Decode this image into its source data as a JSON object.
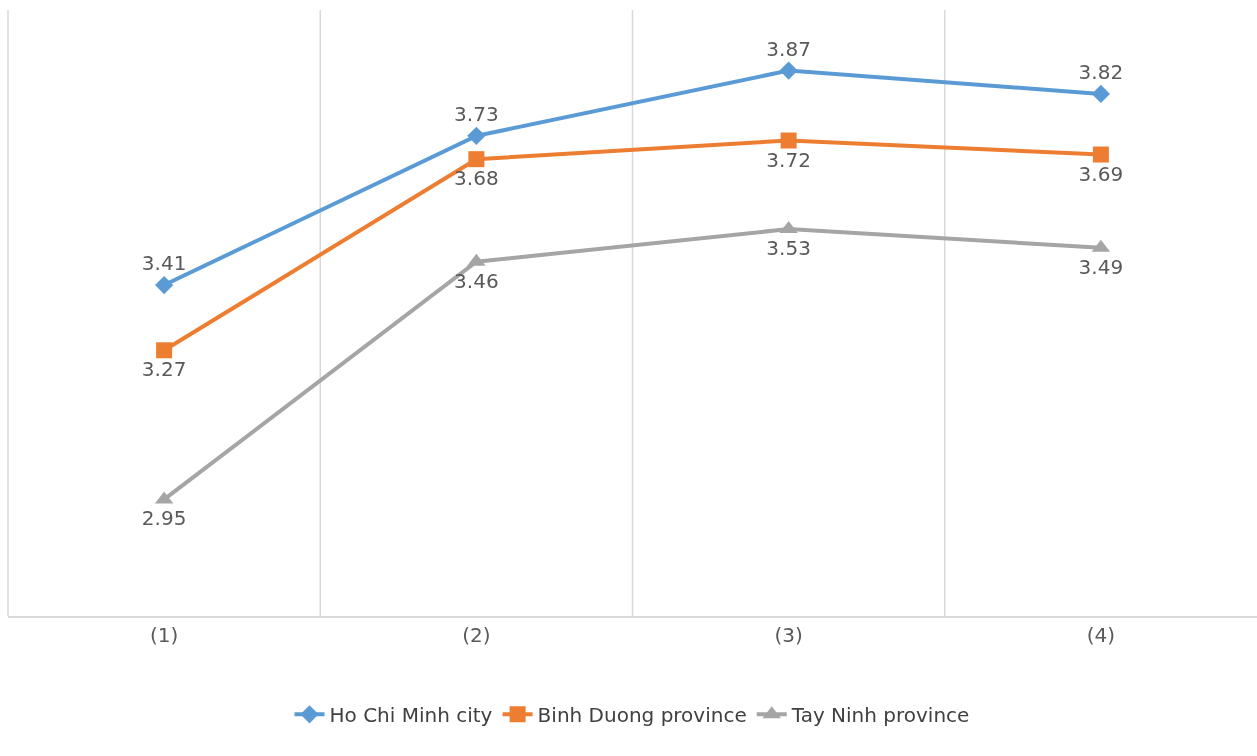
{
  "chart_data": {
    "type": "line",
    "categories": [
      "(1)",
      "(2)",
      "(3)",
      "(4)"
    ],
    "series": [
      {
        "name": "Ho Chi Minh city",
        "color": "#5b9bd5",
        "marker": "diamond",
        "values": [
          3.41,
          3.73,
          3.87,
          3.82
        ]
      },
      {
        "name": "Binh Duong province",
        "color": "#ed7d31",
        "marker": "square",
        "values": [
          3.27,
          3.68,
          3.72,
          3.69
        ]
      },
      {
        "name": "Tay Ninh province",
        "color": "#a5a5a5",
        "marker": "triangle",
        "values": [
          2.95,
          3.46,
          3.53,
          3.49
        ]
      }
    ],
    "ylim": [
      2.7,
      4.0
    ],
    "tick_labels": "x",
    "grid": "x",
    "data_labels": true,
    "legend": "bottom"
  }
}
